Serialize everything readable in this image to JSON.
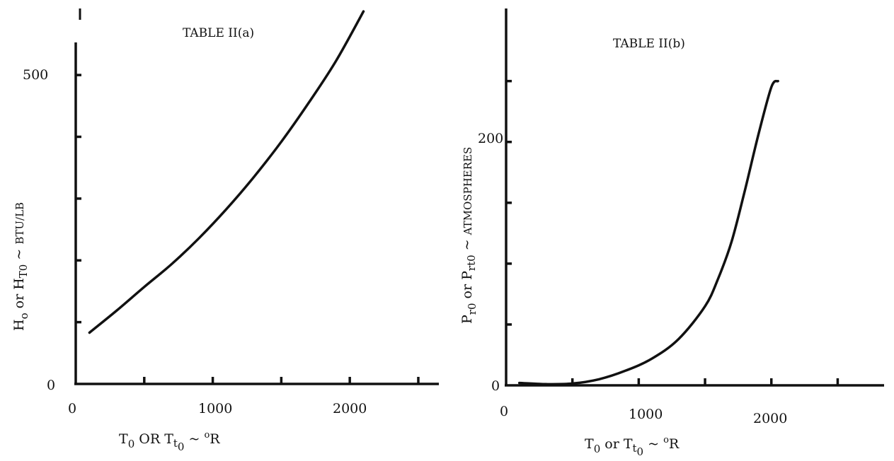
{
  "chart_data": [
    {
      "type": "line",
      "title": "TABLE II(a)",
      "xlabel": "T0 OR Tt0 ~ oR",
      "ylabel": "Ho or HT0 ~ BTU/LB",
      "x_ticks": [
        500,
        1000,
        1500,
        2000,
        2500
      ],
      "x_tick_labels": [
        "0",
        "1000",
        "2000"
      ],
      "y_ticks": [
        100,
        200,
        300,
        400,
        500
      ],
      "y_tick_labels": [
        "0",
        "500"
      ],
      "xlim": [
        0,
        2650
      ],
      "ylim": [
        0,
        610
      ],
      "grid": false,
      "series": [
        {
          "x": [
            100,
            300,
            500,
            700,
            900,
            1100,
            1300,
            1500,
            1700,
            1900,
            2100
          ],
          "y": [
            83,
            119,
            157,
            194,
            236,
            283,
            335,
            392,
            455,
            523,
            603
          ]
        }
      ]
    },
    {
      "type": "line",
      "title": "TABLE II(b)",
      "xlabel": "T0 or Tt0 ~ oR",
      "ylabel": "Pr0 or Prt0 ~ ATMOSPHERES",
      "x_ticks": [
        500,
        1000,
        1500,
        2000,
        2500
      ],
      "x_tick_labels": [
        "0",
        "1000",
        "2000"
      ],
      "y_ticks": [
        50,
        100,
        150,
        200,
        250
      ],
      "y_tick_labels": [
        "0",
        "200"
      ],
      "xlim": [
        0,
        2850
      ],
      "ylim": [
        0,
        305
      ],
      "grid": false,
      "series": [
        {
          "x": [
            100,
            300,
            500,
            700,
            900,
            1100,
            1300,
            1500,
            1600,
            1700,
            1800,
            1900,
            2000,
            2050
          ],
          "y": [
            2,
            1,
            1.5,
            5,
            12,
            22,
            38,
            65,
            88,
            118,
            160,
            205,
            245,
            250
          ]
        }
      ]
    }
  ]
}
